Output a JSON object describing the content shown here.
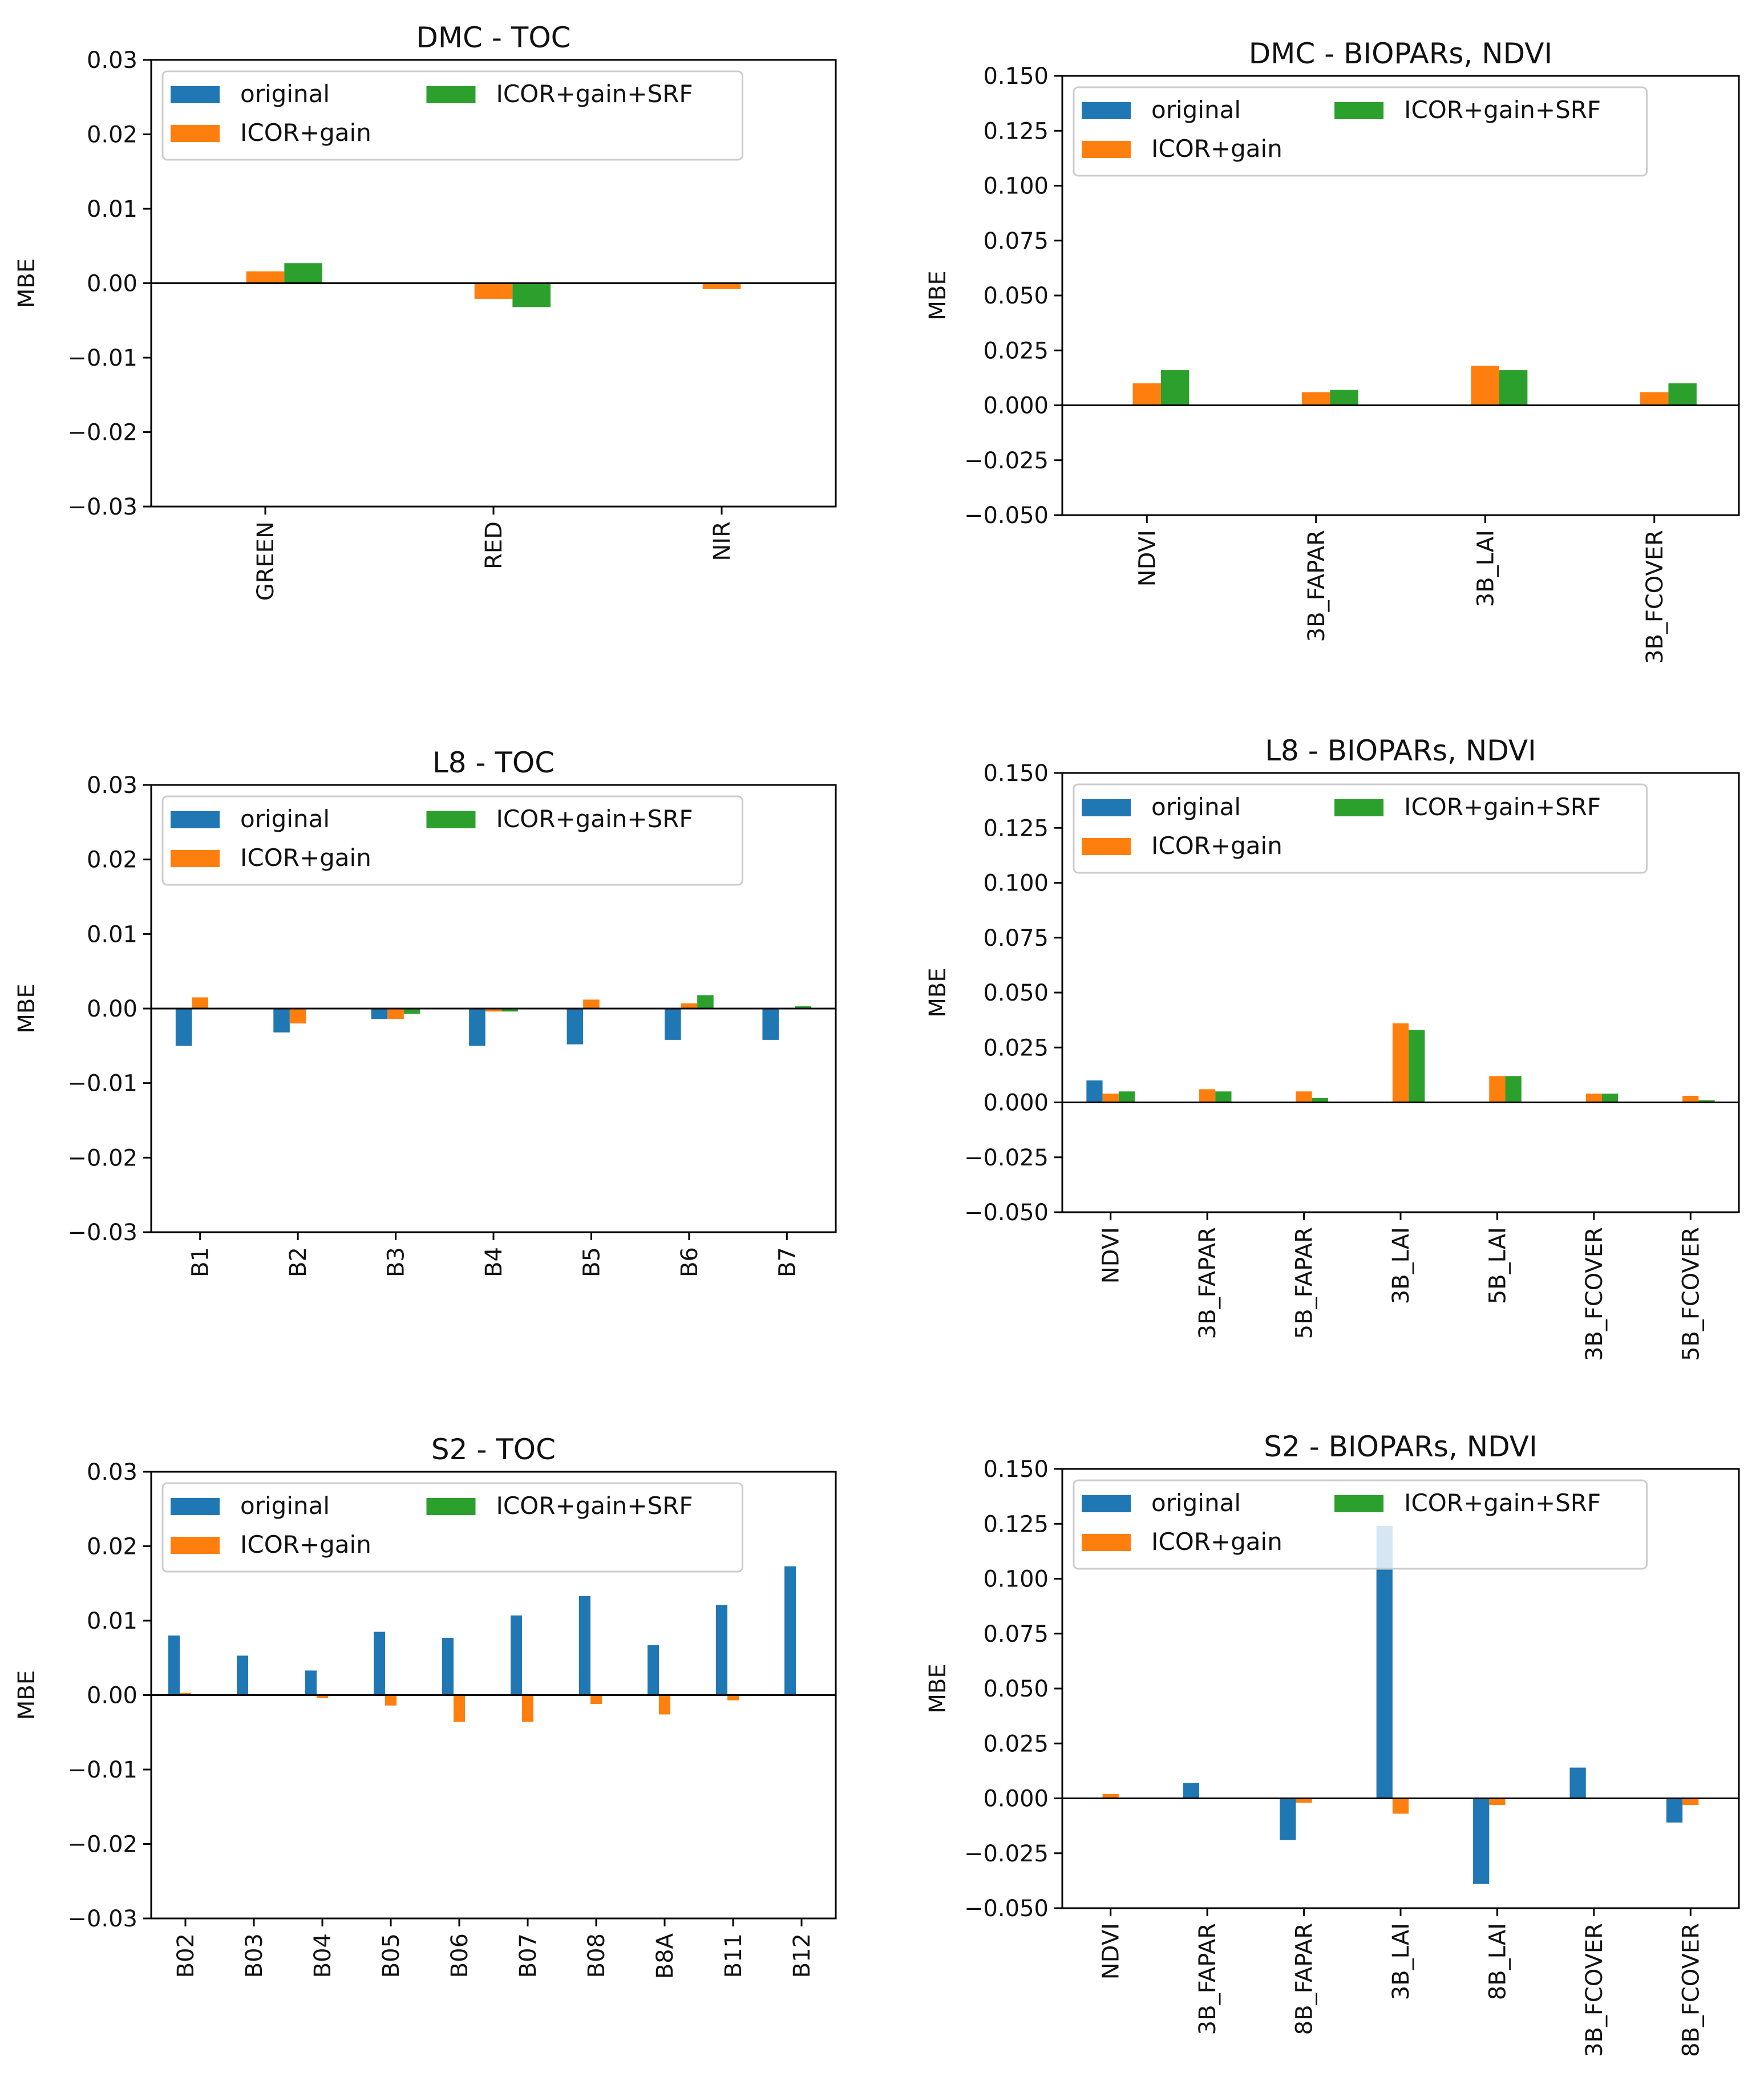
{
  "colors": {
    "original": "#1f77b4",
    "icor_gain": "#ff7f0e",
    "icor_gain_srf": "#2ca02c",
    "axis": "#000000"
  },
  "legend_labels": [
    "original",
    "ICOR+gain",
    "ICOR+gain+SRF"
  ],
  "chart_data": [
    {
      "id": "dmc-toc",
      "type": "bar",
      "title": "DMC - TOC",
      "xlabel": "",
      "ylabel": "MBE",
      "ylim": [
        -0.03,
        0.03
      ],
      "yticks": [
        "0.03",
        "0.02",
        "0.01",
        "0.00",
        "−0.01",
        "−0.02",
        "−0.03"
      ],
      "ytick_values": [
        0.03,
        0.02,
        0.01,
        0.0,
        -0.01,
        -0.02,
        -0.03
      ],
      "categories": [
        "GREEN",
        "RED",
        "NIR"
      ],
      "series": [
        {
          "name": "original",
          "values": [
            0.0,
            0.0,
            0.0
          ]
        },
        {
          "name": "ICOR+gain",
          "values": [
            0.0016,
            -0.0021,
            -0.0008
          ]
        },
        {
          "name": "ICOR+gain+SRF",
          "values": [
            0.0027,
            -0.0032,
            0.0
          ]
        }
      ],
      "legend": "upper-left"
    },
    {
      "id": "dmc-biopars",
      "type": "bar",
      "title": "DMC - BIOPARs, NDVI",
      "xlabel": "",
      "ylabel": "MBE",
      "ylim": [
        -0.05,
        0.15
      ],
      "yticks": [
        "0.150",
        "0.125",
        "0.100",
        "0.075",
        "0.050",
        "0.025",
        "0.000",
        "−0.025",
        "−0.050"
      ],
      "ytick_values": [
        0.15,
        0.125,
        0.1,
        0.075,
        0.05,
        0.025,
        0.0,
        -0.025,
        -0.05
      ],
      "categories": [
        "NDVI",
        "3B_FAPAR",
        "3B_LAI",
        "3B_FCOVER"
      ],
      "series": [
        {
          "name": "original",
          "values": [
            0.0,
            0.0,
            0.0,
            0.0
          ]
        },
        {
          "name": "ICOR+gain",
          "values": [
            0.01,
            0.006,
            0.018,
            0.006
          ]
        },
        {
          "name": "ICOR+gain+SRF",
          "values": [
            0.016,
            0.007,
            0.016,
            0.01
          ]
        }
      ],
      "legend": "upper-left"
    },
    {
      "id": "l8-toc",
      "type": "bar",
      "title": "L8 - TOC",
      "xlabel": "",
      "ylabel": "MBE",
      "ylim": [
        -0.03,
        0.03
      ],
      "yticks": [
        "0.03",
        "0.02",
        "0.01",
        "0.00",
        "−0.01",
        "−0.02",
        "−0.03"
      ],
      "ytick_values": [
        0.03,
        0.02,
        0.01,
        0.0,
        -0.01,
        -0.02,
        -0.03
      ],
      "categories": [
        "B1",
        "B2",
        "B3",
        "B4",
        "B5",
        "B6",
        "B7"
      ],
      "series": [
        {
          "name": "original",
          "values": [
            -0.005,
            -0.0032,
            -0.0014,
            -0.005,
            -0.0048,
            -0.0042,
            -0.0042
          ]
        },
        {
          "name": "ICOR+gain",
          "values": [
            0.0015,
            -0.002,
            -0.0014,
            -0.0004,
            0.0012,
            0.0007,
            -0.0001
          ]
        },
        {
          "name": "ICOR+gain+SRF",
          "values": [
            0.0,
            0.0,
            -0.0007,
            -0.0004,
            0.0,
            0.0018,
            0.0003
          ]
        }
      ],
      "legend": "upper-left"
    },
    {
      "id": "l8-biopars",
      "type": "bar",
      "title": "L8 - BIOPARs, NDVI",
      "xlabel": "",
      "ylabel": "MBE",
      "ylim": [
        -0.05,
        0.15
      ],
      "yticks": [
        "0.150",
        "0.125",
        "0.100",
        "0.075",
        "0.050",
        "0.025",
        "0.000",
        "−0.025",
        "−0.050"
      ],
      "ytick_values": [
        0.15,
        0.125,
        0.1,
        0.075,
        0.05,
        0.025,
        0.0,
        -0.025,
        -0.05
      ],
      "categories": [
        "NDVI",
        "3B_FAPAR",
        "5B_FAPAR",
        "3B_LAI",
        "5B_LAI",
        "3B_FCOVER",
        "5B_FCOVER"
      ],
      "series": [
        {
          "name": "original",
          "values": [
            0.01,
            0.0,
            0.0,
            0.0,
            0.0,
            0.0,
            0.0
          ]
        },
        {
          "name": "ICOR+gain",
          "values": [
            0.004,
            0.006,
            0.005,
            0.036,
            0.012,
            0.004,
            0.003
          ]
        },
        {
          "name": "ICOR+gain+SRF",
          "values": [
            0.005,
            0.005,
            0.002,
            0.033,
            0.012,
            0.004,
            0.001
          ]
        }
      ],
      "legend": "upper-left"
    },
    {
      "id": "s2-toc",
      "type": "bar",
      "title": "S2 - TOC",
      "xlabel": "",
      "ylabel": "MBE",
      "ylim": [
        -0.03,
        0.03
      ],
      "yticks": [
        "0.03",
        "0.02",
        "0.01",
        "0.00",
        "−0.01",
        "−0.02",
        "−0.03"
      ],
      "ytick_values": [
        0.03,
        0.02,
        0.01,
        0.0,
        -0.01,
        -0.02,
        -0.03
      ],
      "categories": [
        "B02",
        "B03",
        "B04",
        "B05",
        "B06",
        "B07",
        "B08",
        "B8A",
        "B11",
        "B12"
      ],
      "series": [
        {
          "name": "original",
          "values": [
            0.008,
            0.0053,
            0.0033,
            0.0085,
            0.0077,
            0.0107,
            0.0133,
            0.0067,
            0.0121,
            0.0173
          ]
        },
        {
          "name": "ICOR+gain",
          "values": [
            0.0003,
            0.0,
            -0.0004,
            -0.0014,
            -0.0036,
            -0.0036,
            -0.0012,
            -0.0026,
            -0.0007,
            -0.0001
          ]
        },
        {
          "name": "ICOR+gain+SRF",
          "values": [
            0.0,
            0.0,
            0.0,
            0.0,
            0.0,
            0.0,
            0.0,
            0.0,
            0.0,
            0.0
          ]
        }
      ],
      "legend": "upper-left"
    },
    {
      "id": "s2-biopars",
      "type": "bar",
      "title": "S2 - BIOPARs, NDVI",
      "xlabel": "",
      "ylabel": "MBE",
      "ylim": [
        -0.05,
        0.15
      ],
      "yticks": [
        "0.150",
        "0.125",
        "0.100",
        "0.075",
        "0.050",
        "0.025",
        "0.000",
        "−0.025",
        "−0.050"
      ],
      "ytick_values": [
        0.15,
        0.125,
        0.1,
        0.075,
        0.05,
        0.025,
        0.0,
        -0.025,
        -0.05
      ],
      "categories": [
        "NDVI",
        "3B_FAPAR",
        "8B_FAPAR",
        "3B_LAI",
        "8B_LAI",
        "3B_FCOVER",
        "8B_FCOVER"
      ],
      "series": [
        {
          "name": "original",
          "values": [
            0.0,
            0.007,
            -0.019,
            0.124,
            -0.039,
            0.014,
            -0.011
          ]
        },
        {
          "name": "ICOR+gain",
          "values": [
            0.002,
            0.0,
            -0.002,
            -0.007,
            -0.003,
            0.0,
            -0.003
          ]
        },
        {
          "name": "ICOR+gain+SRF",
          "values": [
            0.0,
            0.0,
            0.0,
            0.0,
            0.0,
            0.0,
            0.0
          ]
        }
      ],
      "legend": "upper-left"
    }
  ]
}
